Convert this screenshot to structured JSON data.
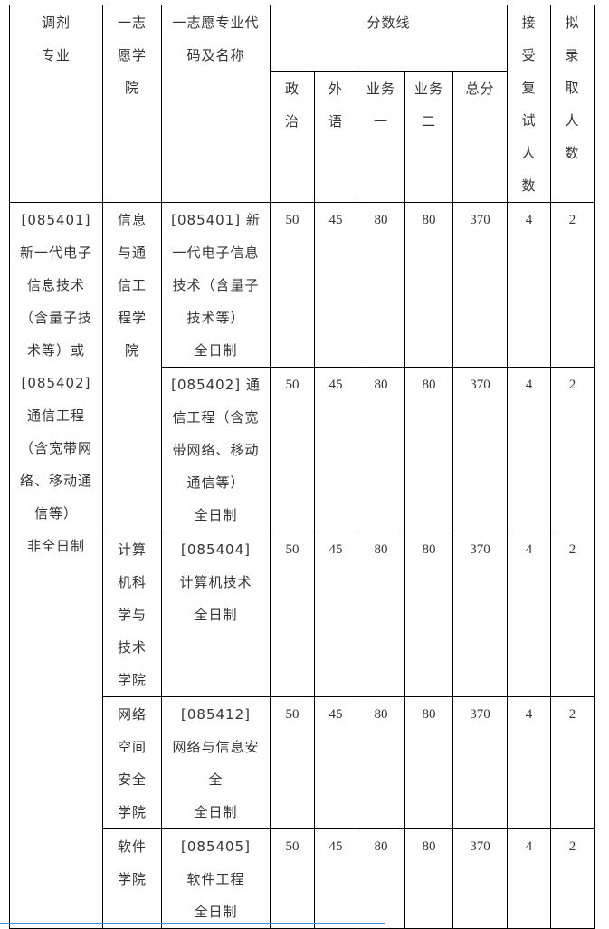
{
  "header": {
    "transfer_major": "调剂\n专业",
    "first_choice_school": "一志\n愿学\n院",
    "first_choice_major": "一志愿专业代\n码及名称",
    "score_line": "分数线",
    "politics": "政\n治",
    "foreign_language": "外\n语",
    "subject1": "业务\n一",
    "subject2": "业务\n二",
    "total": "总分",
    "accepted_retest": "接\n受\n复\n试\n人\n数",
    "planned_admission": "拟\n录\n取\n人\n数"
  },
  "transfer_major_value": "[085401]\n新一代电子\n信息技术\n（含量子技\n术等）或\n[085402]\n通信工程\n（含宽带网\n络、移动通\n信等）\n非全日制",
  "rows": [
    {
      "school": "信息\n与通\n信工\n程学\n院",
      "major": "[085401] 新\n一代电子信息\n技术（含量子\n技术等）\n全日制",
      "politics": "50",
      "foreign": "45",
      "s1": "80",
      "s2": "80",
      "total": "370",
      "retest": "4",
      "admit": "2"
    },
    {
      "school": "",
      "major": "[085402] 通\n信工程（含宽\n带网络、移动\n通信等）\n全日制",
      "politics": "50",
      "foreign": "45",
      "s1": "80",
      "s2": "80",
      "total": "370",
      "retest": "4",
      "admit": "2"
    },
    {
      "school": "计算\n机科\n学与\n技术\n学院",
      "major": "[085404]\n计算机技术\n全日制",
      "politics": "50",
      "foreign": "45",
      "s1": "80",
      "s2": "80",
      "total": "370",
      "retest": "4",
      "admit": "2"
    },
    {
      "school": "网络\n空间\n安全\n学院",
      "major": "[085412]\n网络与信息安\n全\n全日制",
      "politics": "50",
      "foreign": "45",
      "s1": "80",
      "s2": "80",
      "total": "370",
      "retest": "4",
      "admit": "2"
    },
    {
      "school": "软件\n学院",
      "major": "[085405]\n软件工程\n全日制",
      "politics": "50",
      "foreign": "45",
      "s1": "80",
      "s2": "80",
      "total": "370",
      "retest": "4",
      "admit": "2"
    }
  ]
}
